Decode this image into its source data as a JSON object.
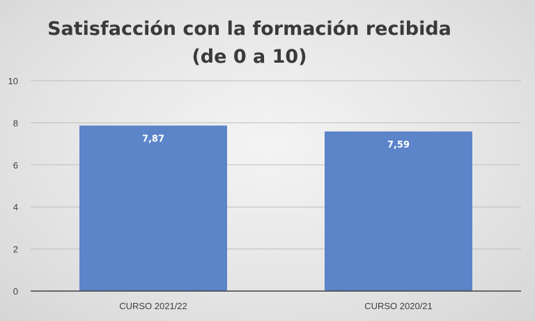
{
  "chart_data": {
    "type": "bar",
    "title": [
      "Satisfacción con la formación recibida",
      "(de 0 a 10)"
    ],
    "categories": [
      "CURSO 2021/22",
      "CURSO 2020/21"
    ],
    "values": [
      7.87,
      7.59
    ],
    "data_labels": [
      "7,87",
      "7,59"
    ],
    "ylim": [
      0,
      10
    ],
    "yticks": [
      0,
      2,
      4,
      6,
      8,
      10
    ],
    "grid": true,
    "legend": "none",
    "bar_color": "#5b84c9"
  }
}
